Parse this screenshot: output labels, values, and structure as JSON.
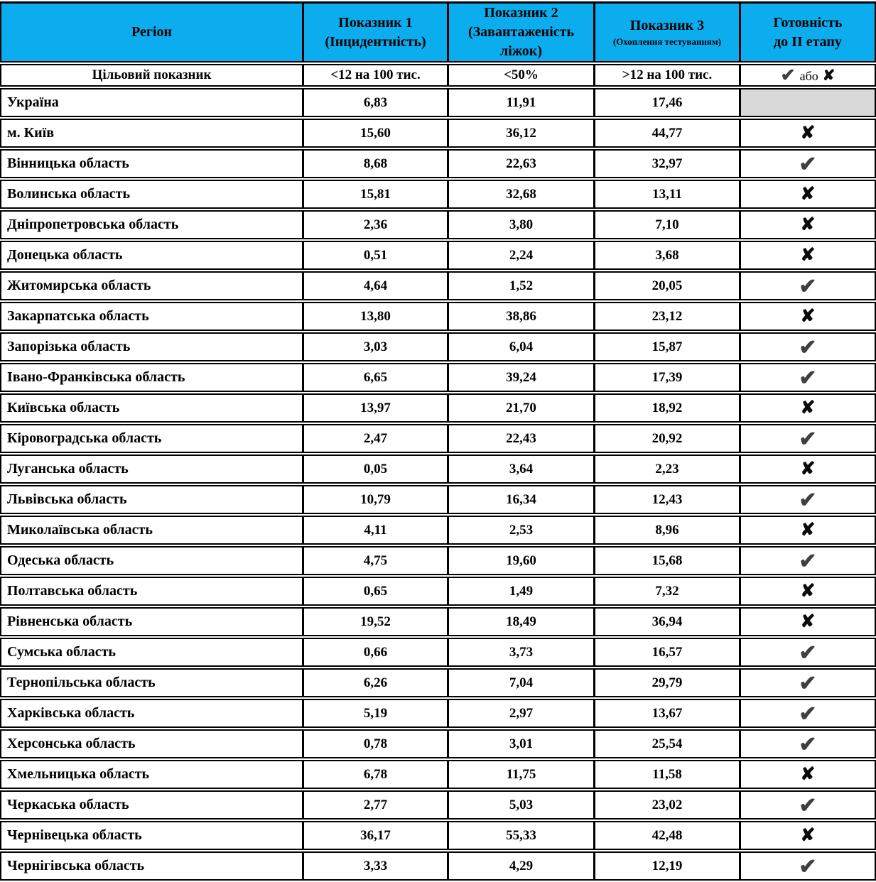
{
  "table": {
    "colors": {
      "header_bg": "#0BADEE",
      "na_cell_bg": "#D9D9D9",
      "check": "#3F3F3F",
      "cross": "#0A0A0A"
    },
    "glyphs": {
      "check": "✔",
      "cross": "✘"
    },
    "columns": [
      {
        "title": "Регіон",
        "subtitle": ""
      },
      {
        "title": "Показник 1",
        "subtitle": "(Інцидентність)"
      },
      {
        "title": "Показник 2",
        "subtitle": "(Завантаженість ліжок)"
      },
      {
        "title": "Показник 3",
        "subtitle": "(Охоплення тестуванням)"
      },
      {
        "title": "Готовність",
        "subtitle": "до ІІ етапу"
      }
    ],
    "target_row": {
      "label": "Цільовий показник",
      "indicator1": "<12 на 100 тис.",
      "indicator2": "<50%",
      "indicator3": ">12 на 100 тис.",
      "readiness_or": "або"
    },
    "rows": [
      {
        "region": "Україна",
        "indicator1": "6,83",
        "indicator2": "11,91",
        "indicator3": "17,46",
        "readiness": "na"
      },
      {
        "region": "м. Київ",
        "indicator1": "15,60",
        "indicator2": "36,12",
        "indicator3": "44,77",
        "readiness": "cross"
      },
      {
        "region": "Вінницька область",
        "indicator1": "8,68",
        "indicator2": "22,63",
        "indicator3": "32,97",
        "readiness": "check"
      },
      {
        "region": "Волинська область",
        "indicator1": "15,81",
        "indicator2": "32,68",
        "indicator3": "13,11",
        "readiness": "cross"
      },
      {
        "region": "Дніпропетровська область",
        "indicator1": "2,36",
        "indicator2": "3,80",
        "indicator3": "7,10",
        "readiness": "cross"
      },
      {
        "region": "Донецька область",
        "indicator1": "0,51",
        "indicator2": "2,24",
        "indicator3": "3,68",
        "readiness": "cross"
      },
      {
        "region": "Житомирська область",
        "indicator1": "4,64",
        "indicator2": "1,52",
        "indicator3": "20,05",
        "readiness": "check"
      },
      {
        "region": "Закарпатська область",
        "indicator1": "13,80",
        "indicator2": "38,86",
        "indicator3": "23,12",
        "readiness": "cross"
      },
      {
        "region": "Запорізька область",
        "indicator1": "3,03",
        "indicator2": "6,04",
        "indicator3": "15,87",
        "readiness": "check"
      },
      {
        "region": "Івано-Франківська область",
        "indicator1": "6,65",
        "indicator2": "39,24",
        "indicator3": "17,39",
        "readiness": "check"
      },
      {
        "region": "Київська область",
        "indicator1": "13,97",
        "indicator2": "21,70",
        "indicator3": "18,92",
        "readiness": "cross"
      },
      {
        "region": "Кіровоградська область",
        "indicator1": "2,47",
        "indicator2": "22,43",
        "indicator3": "20,92",
        "readiness": "check"
      },
      {
        "region": "Луганська область",
        "indicator1": "0,05",
        "indicator2": "3,64",
        "indicator3": "2,23",
        "readiness": "cross"
      },
      {
        "region": "Львівська область",
        "indicator1": "10,79",
        "indicator2": "16,34",
        "indicator3": "12,43",
        "readiness": "check"
      },
      {
        "region": "Миколаївська область",
        "indicator1": "4,11",
        "indicator2": "2,53",
        "indicator3": "8,96",
        "readiness": "cross"
      },
      {
        "region": "Одеська область",
        "indicator1": "4,75",
        "indicator2": "19,60",
        "indicator3": "15,68",
        "readiness": "check"
      },
      {
        "region": "Полтавська область",
        "indicator1": "0,65",
        "indicator2": "1,49",
        "indicator3": "7,32",
        "readiness": "cross"
      },
      {
        "region": "Рівненська область",
        "indicator1": "19,52",
        "indicator2": "18,49",
        "indicator3": "36,94",
        "readiness": "cross"
      },
      {
        "region": "Сумська область",
        "indicator1": "0,66",
        "indicator2": "3,73",
        "indicator3": "16,57",
        "readiness": "check"
      },
      {
        "region": "Тернопільська область",
        "indicator1": "6,26",
        "indicator2": "7,04",
        "indicator3": "29,79",
        "readiness": "check"
      },
      {
        "region": "Харківська область",
        "indicator1": "5,19",
        "indicator2": "2,97",
        "indicator3": "13,67",
        "readiness": "check"
      },
      {
        "region": "Херсонська область",
        "indicator1": "0,78",
        "indicator2": "3,01",
        "indicator3": "25,54",
        "readiness": "check"
      },
      {
        "region": "Хмельницька область",
        "indicator1": "6,78",
        "indicator2": "11,75",
        "indicator3": "11,58",
        "readiness": "cross"
      },
      {
        "region": "Черкаська область",
        "indicator1": "2,77",
        "indicator2": "5,03",
        "indicator3": "23,02",
        "readiness": "check"
      },
      {
        "region": "Чернівецька область",
        "indicator1": "36,17",
        "indicator2": "55,33",
        "indicator3": "42,48",
        "readiness": "cross"
      },
      {
        "region": "Чернігівська область",
        "indicator1": "3,33",
        "indicator2": "4,29",
        "indicator3": "12,19",
        "readiness": "check"
      }
    ]
  }
}
